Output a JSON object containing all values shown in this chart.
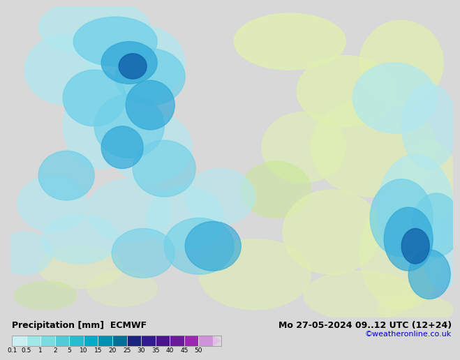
{
  "title_left": "Precipitation [mm]  ECMWF",
  "title_right": "Mo 27-05-2024 09..12 UTC (12+24)",
  "credit": "©weatheronline.co.uk",
  "colorbar_labels": [
    "0.1",
    "0.5",
    "1",
    "2",
    "5",
    "10",
    "15",
    "20",
    "25",
    "30",
    "35",
    "40",
    "45",
    "50"
  ],
  "colorbar_colors": [
    "#c8f0f0",
    "#a0e8e8",
    "#78dce0",
    "#50ccd8",
    "#28bcd0",
    "#00acc8",
    "#0090b0",
    "#007098",
    "#1a237e",
    "#311b92",
    "#4a148c",
    "#6a1b9a",
    "#9c27b0",
    "#ce93d8"
  ],
  "arrow_color": "#e1bee7",
  "bg_color": "#d8d8d8",
  "land_color": "#e8e8e8",
  "sea_color": "#e8e8e8",
  "precip_light_cyan": "#b0e8f0",
  "precip_cyan": "#70d0e8",
  "precip_blue": "#30a8d8",
  "precip_dark_blue": "#1060a8",
  "precip_green": "#c8e890",
  "precip_light_green": "#e0f0b0",
  "label_fontsize": 8,
  "title_fontsize": 9,
  "credit_fontsize": 8,
  "credit_color": "#0000cc",
  "map_numbers_fontsize": 6
}
